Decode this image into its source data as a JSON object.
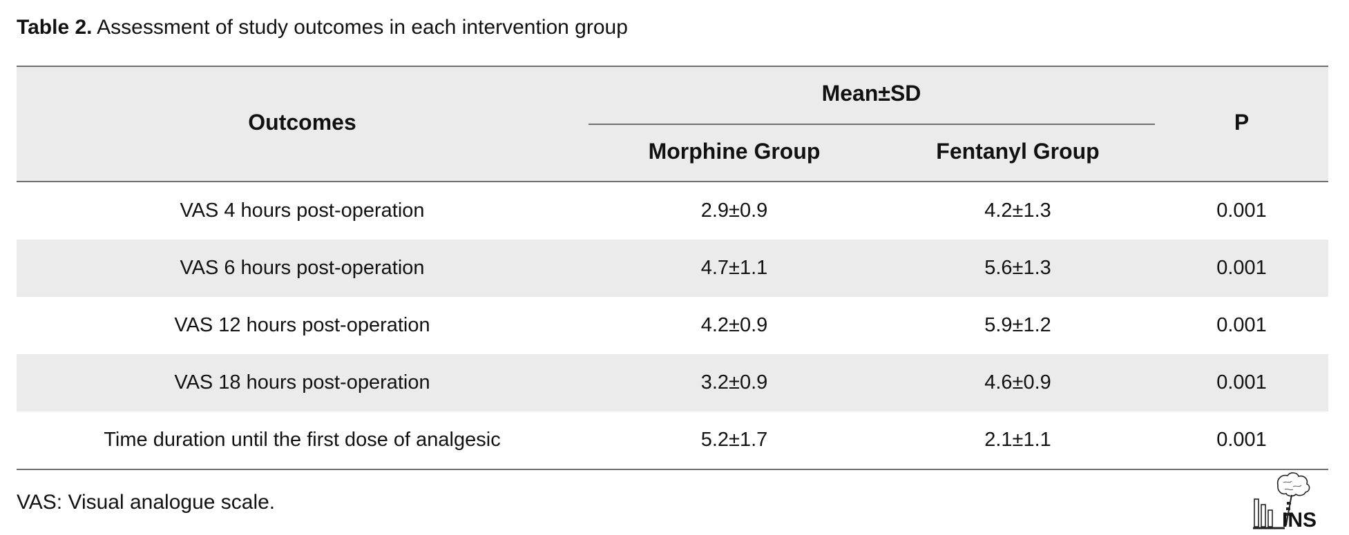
{
  "caption": {
    "label": "Table 2.",
    "text": " Assessment of study outcomes in each intervention group"
  },
  "table": {
    "headers": {
      "outcomes": "Outcomes",
      "group_header": "Mean±SD",
      "morphine": "Morphine Group",
      "fentanyl": "Fentanyl Group",
      "p": "P"
    },
    "rows": [
      {
        "outcome": "VAS 4 hours post-operation",
        "morphine": "2.9±0.9",
        "fentanyl": "4.2±1.3",
        "p": "0.001"
      },
      {
        "outcome": "VAS 6 hours post-operation",
        "morphine": "4.7±1.1",
        "fentanyl": "5.6±1.3",
        "p": "0.001"
      },
      {
        "outcome": "VAS 12 hours post-operation",
        "morphine": "4.2±0.9",
        "fentanyl": "5.9±1.2",
        "p": "0.001"
      },
      {
        "outcome": "VAS 18 hours post-operation",
        "morphine": "3.2±0.9",
        "fentanyl": "4.6±0.9",
        "p": "0.001"
      },
      {
        "outcome": "Time duration until the first dose of analgesic",
        "morphine": "5.2±1.7",
        "fentanyl": "2.1±1.1",
        "p": "0.001"
      }
    ]
  },
  "footnote": "VAS: Visual analogue scale.",
  "logo": {
    "icon": "journal-logo-icon",
    "text": "INS"
  },
  "colors": {
    "header_background": "#ebebeb",
    "stripe_background": "#ebebeb",
    "rule": "#6f6f6f"
  }
}
